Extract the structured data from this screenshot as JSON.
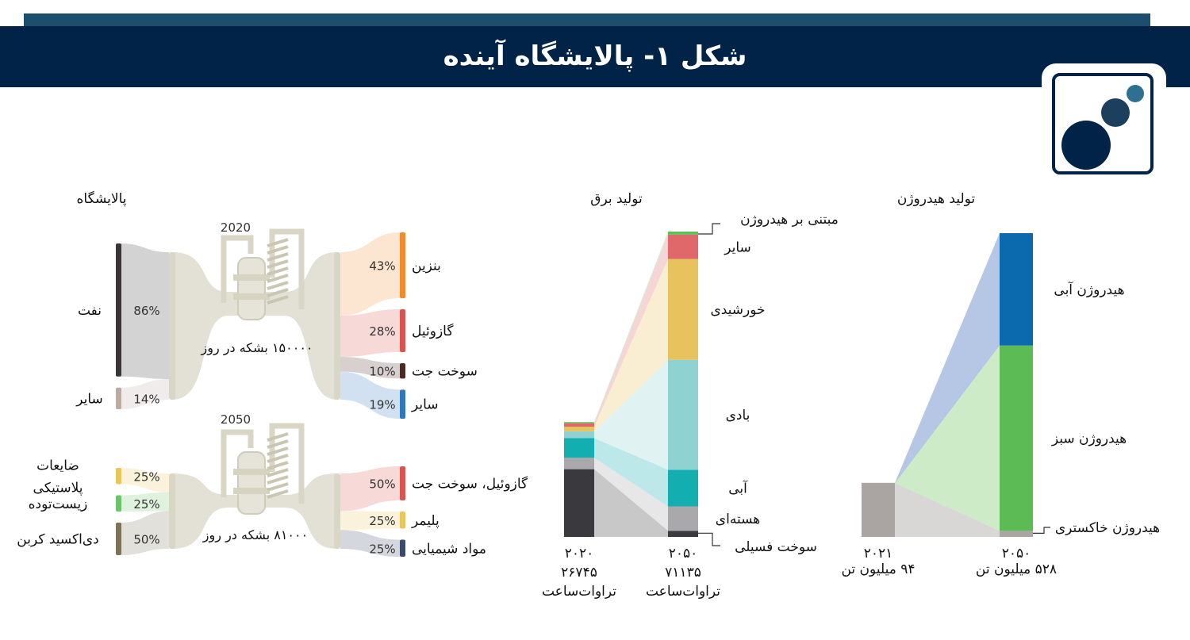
{
  "header": {
    "title": "شکل ۱- پالایشگاه آینده"
  },
  "colors": {
    "header_bg": "#012347",
    "stripe": "#1d4e6e",
    "logo_dark": "#012347",
    "logo_mid": "#1d3f5e",
    "logo_light": "#2f6f92"
  },
  "chart_data": [
    {
      "type": "sankey",
      "title": "پالایشگاه",
      "panels": [
        {
          "year": "2020",
          "throughput": "۱۵۰۰۰۰ بشکه در روز",
          "inputs": [
            {
              "name": "نفت",
              "value": 86,
              "label": "86%",
              "color": "#3a3638"
            },
            {
              "name": "سایر",
              "value": 14,
              "label": "14%",
              "color": "#bcaaa4"
            }
          ],
          "outputs": [
            {
              "name": "بنزین",
              "value": 43,
              "label": "43%",
              "color": "#f28a2e"
            },
            {
              "name": "گازوئیل",
              "value": 28,
              "label": "28%",
              "color": "#d9534f"
            },
            {
              "name": "سوخت جت",
              "value": 10,
              "label": "10%",
              "color": "#4a2a22"
            },
            {
              "name": "سایر",
              "value": 19,
              "label": "19%",
              "color": "#2f78bf"
            }
          ]
        },
        {
          "year": "2050",
          "throughput": "۸۱۰۰۰ بشکه در روز",
          "inputs": [
            {
              "name": "ضایعات پلاستیکی",
              "value": 25,
              "label": "25%",
              "color": "#e9c55a"
            },
            {
              "name": "زیست‌توده",
              "value": 25,
              "label": "25%",
              "color": "#6cc46a"
            },
            {
              "name": "دی‌اکسید کربن",
              "value": 50,
              "label": "50%",
              "color": "#7c7458"
            }
          ],
          "outputs": [
            {
              "name": "گازوئیل، سوخت جت",
              "value": 50,
              "label": "50%",
              "color": "#d9534f"
            },
            {
              "name": "پلیمر",
              "value": 25,
              "label": "25%",
              "color": "#e9c55a"
            },
            {
              "name": "مواد شیمیایی",
              "value": 25,
              "label": "25%",
              "color": "#3a4a6a"
            }
          ]
        }
      ]
    },
    {
      "type": "stacked-bar",
      "title": "تولید برق",
      "categories": [
        {
          "year": "۲۰۲۰",
          "total": "۲۶۷۴۵",
          "unit": "تراوات‌ساعت",
          "total_value": 26745
        },
        {
          "year": "۲۰۵۰",
          "total": "۷۱۱۳۵",
          "unit": "تراوات‌ساعت",
          "total_value": 71135
        }
      ],
      "series": [
        {
          "name": "سوخت فسیلی",
          "color": "#3a3a3e",
          "values": [
            59,
            2
          ]
        },
        {
          "name": "هسته‌ای",
          "color": "#a9a9ab",
          "values": [
            10,
            8
          ]
        },
        {
          "name": "آبی",
          "color": "#12aeb0",
          "values": [
            17,
            12
          ]
        },
        {
          "name": "بادی",
          "color": "#8ed3d2",
          "values": [
            6,
            36
          ]
        },
        {
          "name": "خورشیدی",
          "color": "#e8c25c",
          "values": [
            4,
            33
          ]
        },
        {
          "name": "سایر",
          "color": "#e0686a",
          "values": [
            3,
            8
          ]
        },
        {
          "name": "مبتنی بر هیدروژن",
          "color": "#5cbf5a",
          "values": [
            1,
            1
          ]
        }
      ]
    },
    {
      "type": "stacked-bar",
      "title": "تولید هیدروژن",
      "categories": [
        {
          "year": "۲۰۲۱",
          "total": "۹۴ میلیون تن",
          "total_value": 94
        },
        {
          "year": "۲۰۵۰",
          "total": "۵۲۸ میلیون تن",
          "total_value": 528
        }
      ],
      "series": [
        {
          "name": "هیدروژن خاکستری",
          "color": "#aaa5a3",
          "values": [
            100,
            2
          ]
        },
        {
          "name": "هیدروژن سبز",
          "color": "#5cbb55",
          "values": [
            0,
            61
          ]
        },
        {
          "name": "هیدروژن آبی",
          "color": "#0a6aad",
          "values": [
            0,
            37
          ]
        }
      ]
    }
  ]
}
